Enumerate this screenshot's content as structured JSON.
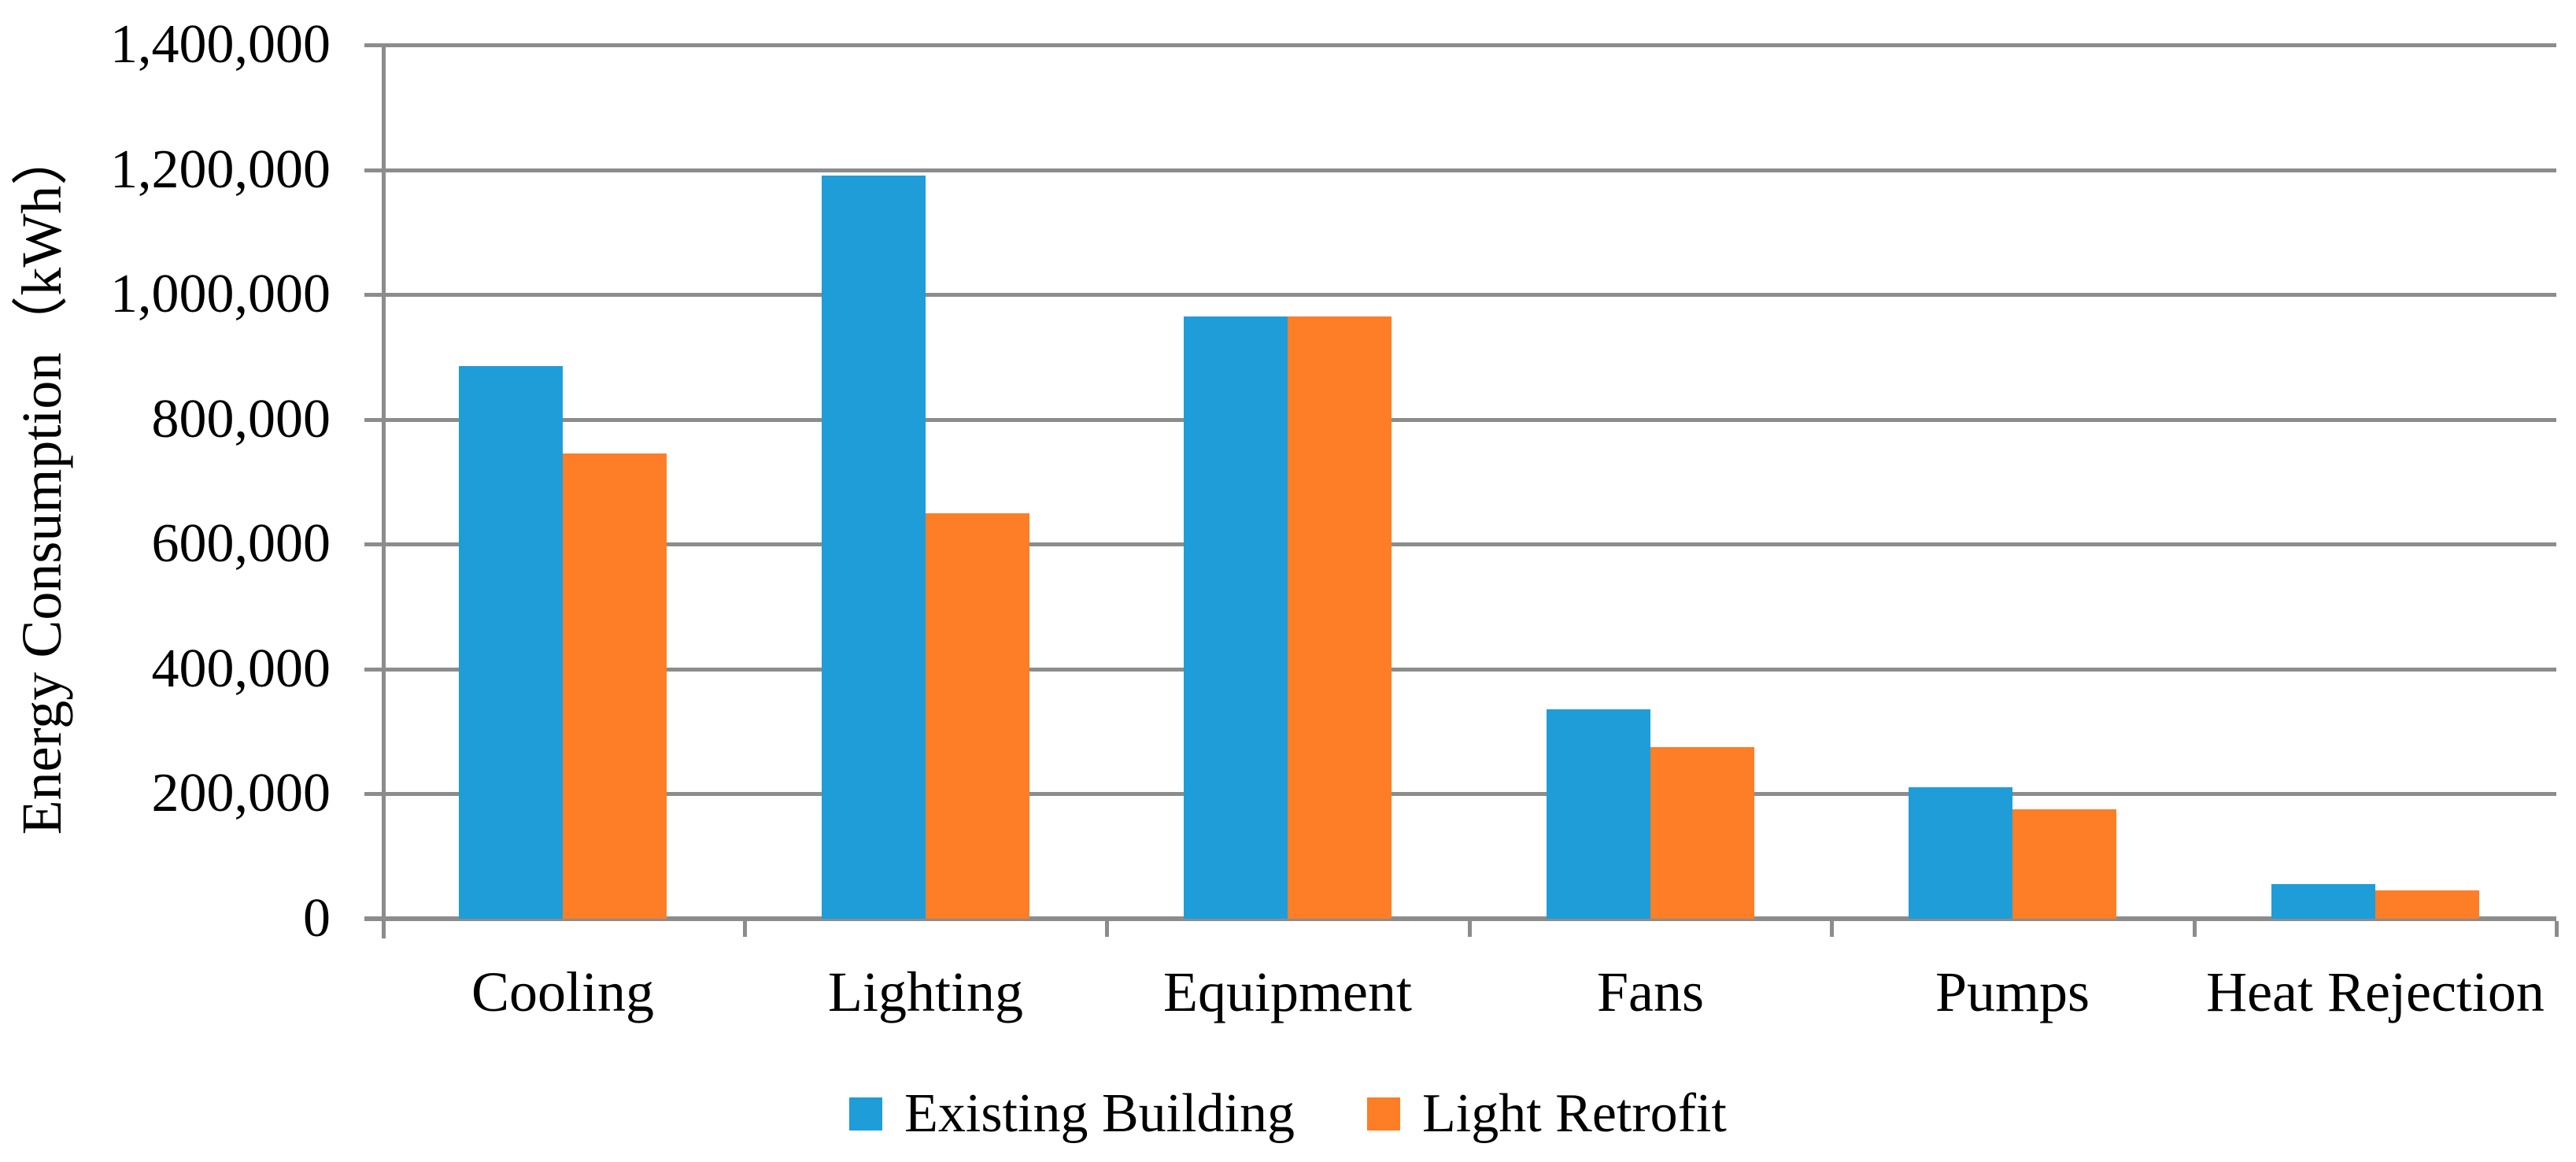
{
  "chart_data": {
    "type": "bar",
    "title": "",
    "xlabel": "",
    "ylabel": "Energy Consumption（kWh）",
    "categories": [
      "Cooling",
      "Lighting",
      "Equipment",
      "Fans",
      "Pumps",
      "Heat Rejection"
    ],
    "series": [
      {
        "name": "Existing Building",
        "color": "#1F9DD9",
        "values": [
          885000,
          1190000,
          965000,
          335000,
          210000,
          55000
        ]
      },
      {
        "name": "Light Retrofit",
        "color": "#FD7E26",
        "values": [
          745000,
          650000,
          965000,
          275000,
          175000,
          45000
        ]
      }
    ],
    "ylim": [
      0,
      1400000
    ],
    "ytick_step": 200000,
    "yticklabels": [
      "0",
      "200,000",
      "400,000",
      "600,000",
      "800,000",
      "1,000,000",
      "1,200,000",
      "1,400,000"
    ],
    "grid": true,
    "legend_position": "bottom",
    "axis_color": "#8C8C8C",
    "text_color": "#000000",
    "background_color": "#FFFFFF"
  }
}
